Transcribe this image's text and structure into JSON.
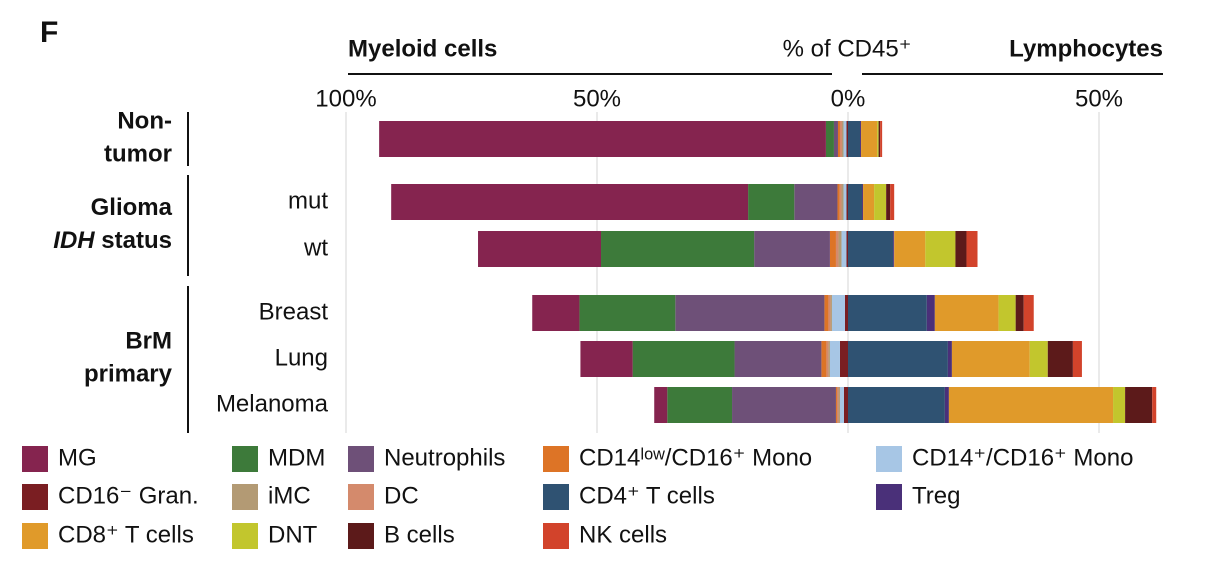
{
  "chart_data": {
    "type": "diverging-stacked-bar",
    "panel_label": "F",
    "title": "% of CD45⁺",
    "sides": [
      {
        "label": "Myeloid cells",
        "direction": "left",
        "xlim": [
          0,
          100
        ],
        "xticks": [
          {
            "value": 100,
            "label": "100%"
          },
          {
            "value": 50,
            "label": "50%"
          },
          {
            "value": 0,
            "label": "0%"
          }
        ]
      },
      {
        "label": "Lymphocytes",
        "direction": "right",
        "xlim": [
          0,
          62
        ],
        "xticks": [
          {
            "value": 50,
            "label": "50%"
          }
        ]
      }
    ],
    "row_groups": [
      {
        "label": [
          [
            {
              "text": "Non-"
            }
          ],
          [
            {
              "text": "tumor"
            }
          ]
        ],
        "categories": [
          null
        ]
      },
      {
        "label": [
          [
            {
              "text": "Glioma"
            }
          ],
          [
            {
              "text": "IDH",
              "italic": true
            },
            {
              "text": " status"
            }
          ]
        ],
        "categories": [
          "mut",
          "wt"
        ]
      },
      {
        "label": [
          [
            {
              "text": "BrM"
            }
          ],
          [
            {
              "text": "primary"
            }
          ]
        ],
        "categories": [
          "Breast",
          "Lung",
          "Melanoma"
        ]
      }
    ],
    "series": [
      {
        "name": "MG",
        "side": "left",
        "color": "#85244f",
        "values": [
          89,
          71.1,
          24.5,
          9.4,
          10.4,
          2.6
        ]
      },
      {
        "name": "MDM",
        "side": "left",
        "color": "#3d7a3a",
        "values": [
          1.6,
          9.2,
          30.5,
          19.1,
          20.3,
          12.9
        ]
      },
      {
        "name": "Neutrophils",
        "side": "left",
        "color": "#6e5078",
        "values": [
          0.8,
          8.6,
          15.1,
          29.7,
          17.3,
          20.7
        ]
      },
      {
        "name": "CD14ˡᵒʷ/CD16⁺ Mono",
        "side": "left",
        "color": "#dd7426",
        "values": [
          0.4,
          0.4,
          1.2,
          0.8,
          1.0,
          0.2
        ]
      },
      {
        "name": "CD14⁺/CD16⁺ Mono",
        "side": "left",
        "color": "#a7c6e5",
        "values": [
          0.6,
          0.6,
          1.0,
          2.6,
          2.0,
          0.8
        ]
      },
      {
        "name": "CD16⁻ Gran.",
        "side": "left",
        "color": "#7a1e22",
        "values": [
          0.3,
          0.3,
          0.3,
          0.6,
          1.6,
          0.8
        ]
      },
      {
        "name": "iMC",
        "side": "left",
        "color": "#b39a74",
        "values": [
          0.3,
          0.4,
          0.6,
          0.3,
          0.3,
          0.3
        ]
      },
      {
        "name": "DC",
        "side": "left",
        "color": "#d48a6c",
        "values": [
          0.4,
          0.4,
          0.5,
          0.4,
          0.4,
          0.3
        ]
      },
      {
        "name": "CD4⁺ T cells",
        "side": "right",
        "color": "#2f5272",
        "values": [
          2.4,
          2.8,
          9.0,
          15.7,
          19.9,
          19.3
        ]
      },
      {
        "name": "Treg",
        "side": "right",
        "color": "#4a3079",
        "values": [
          0.2,
          0.2,
          0.2,
          1.6,
          0.8,
          0.8
        ]
      },
      {
        "name": "CD8⁺ T cells",
        "side": "right",
        "color": "#e09a2a",
        "values": [
          3.2,
          2.2,
          6.2,
          12.7,
          15.5,
          32.7
        ]
      },
      {
        "name": "DNT",
        "side": "right",
        "color": "#c2c62d",
        "values": [
          0.3,
          2.4,
          6.0,
          3.4,
          3.6,
          2.4
        ]
      },
      {
        "name": "B cells",
        "side": "right",
        "color": "#5c1a1a",
        "values": [
          0.3,
          0.8,
          2.2,
          1.6,
          5.0,
          5.4
        ]
      },
      {
        "name": "NK cells",
        "side": "right",
        "color": "#d2432b",
        "values": [
          0.4,
          0.8,
          2.2,
          2.0,
          1.8,
          0.8
        ]
      }
    ],
    "grid": true
  }
}
